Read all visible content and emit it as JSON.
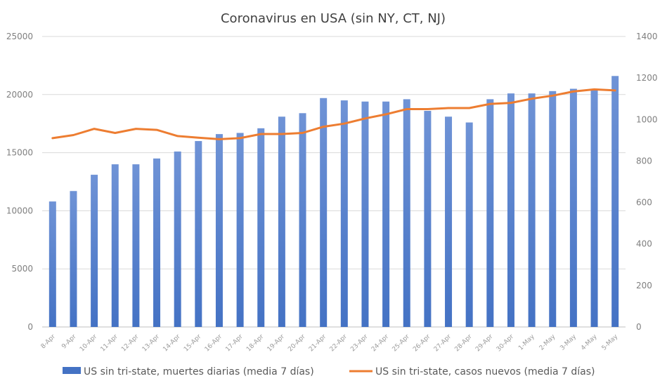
{
  "chart_data": {
    "type": "bar",
    "title": "Coronavirus en USA (sin NY, CT, NJ)",
    "categories": [
      "8-Apr",
      "9-Apr",
      "10-Apr",
      "11-Apr",
      "12-Apr",
      "13-Apr",
      "14-Apr",
      "15-Apr",
      "16-Apr",
      "17-Apr",
      "18-Apr",
      "19-Apr",
      "20-Apr",
      "21-Apr",
      "22-Apr",
      "23-Apr",
      "24-Apr",
      "25-Apr",
      "26-Apr",
      "27-Apr",
      "28-Apr",
      "29-Apr",
      "30-Apr",
      "1-May",
      "2-May",
      "3-May",
      "4-May",
      "5-May"
    ],
    "series": [
      {
        "name": "US sin tri-state, muertes diarias (media  7 días)",
        "type": "bar",
        "axis": "left",
        "color": "#4472c4",
        "values": [
          10800,
          11700,
          13100,
          14000,
          14000,
          14500,
          15100,
          16000,
          16600,
          16700,
          17100,
          18100,
          18400,
          19700,
          19500,
          19400,
          19400,
          19600,
          18600,
          18100,
          17600,
          19600,
          20100,
          20100,
          20300,
          20500,
          20400,
          21600
        ]
      },
      {
        "name": "US sin tri-state, casos nuevos (media 7 días)",
        "type": "line",
        "axis": "right",
        "color": "#ed7d31",
        "values": [
          910,
          925,
          955,
          935,
          955,
          950,
          920,
          912,
          905,
          910,
          930,
          930,
          935,
          965,
          980,
          1005,
          1025,
          1050,
          1050,
          1055,
          1055,
          1075,
          1080,
          1100,
          1115,
          1135,
          1145,
          1140
        ]
      }
    ],
    "y_left": {
      "min": 0,
      "max": 25000,
      "ticks": [
        "0",
        "5000",
        "10000",
        "15000",
        "20000",
        "25000"
      ]
    },
    "y_right": {
      "min": 0,
      "max": 1400,
      "ticks": [
        "0",
        "200",
        "400",
        "600",
        "800",
        "1000",
        "1200",
        "1400"
      ]
    },
    "grid": true,
    "legend_position": "bottom"
  }
}
